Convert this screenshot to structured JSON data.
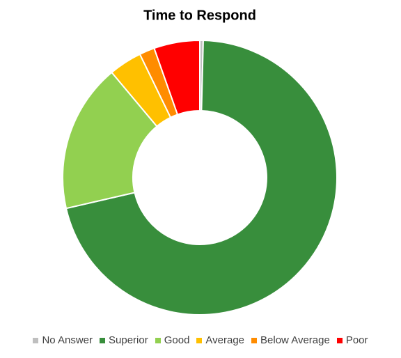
{
  "chart_data": {
    "type": "doughnut",
    "title": "Time to Respond",
    "categories": [
      "No Answer",
      "Superior",
      "Good",
      "Average",
      "Below Average",
      "Poor"
    ],
    "values": [
      0.4,
      71,
      17.5,
      3.9,
      1.8,
      5.4
    ],
    "colors": [
      "#bfbfbf",
      "#388e3c",
      "#92d050",
      "#ffc000",
      "#ff8c00",
      "#ff0000"
    ]
  }
}
